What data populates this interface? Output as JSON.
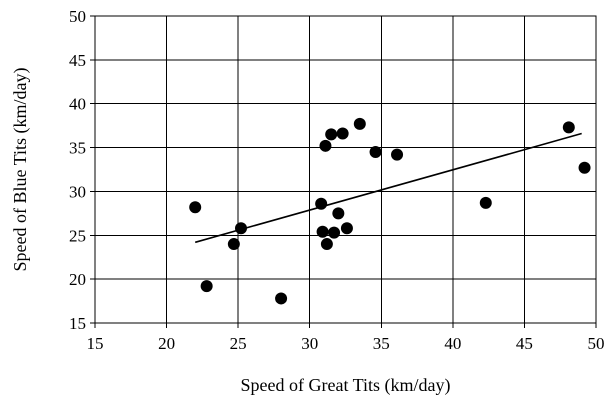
{
  "chart_data": {
    "type": "scatter",
    "title": "",
    "xlabel": "Speed of Great Tits (km/day)",
    "ylabel": "Speed of Blue Tits (km/day)",
    "xlim": [
      15,
      50
    ],
    "ylim": [
      15,
      50
    ],
    "x_ticks": [
      15,
      20,
      25,
      30,
      35,
      40,
      45,
      50
    ],
    "y_ticks": [
      15,
      20,
      25,
      30,
      35,
      40,
      45,
      50
    ],
    "grid": true,
    "legend": "none",
    "points": [
      {
        "x": 22.0,
        "y": 28.2
      },
      {
        "x": 22.8,
        "y": 19.2
      },
      {
        "x": 24.7,
        "y": 24.0
      },
      {
        "x": 25.2,
        "y": 25.8
      },
      {
        "x": 28.0,
        "y": 17.8
      },
      {
        "x": 30.8,
        "y": 28.6
      },
      {
        "x": 30.9,
        "y": 25.4
      },
      {
        "x": 31.1,
        "y": 35.2
      },
      {
        "x": 31.2,
        "y": 24.0
      },
      {
        "x": 31.5,
        "y": 36.5
      },
      {
        "x": 31.7,
        "y": 25.3
      },
      {
        "x": 32.0,
        "y": 27.5
      },
      {
        "x": 32.3,
        "y": 36.6
      },
      {
        "x": 32.6,
        "y": 25.8
      },
      {
        "x": 33.5,
        "y": 37.7
      },
      {
        "x": 34.6,
        "y": 34.5
      },
      {
        "x": 36.1,
        "y": 34.2
      },
      {
        "x": 42.3,
        "y": 28.7
      },
      {
        "x": 48.1,
        "y": 37.3
      },
      {
        "x": 49.2,
        "y": 32.7
      }
    ],
    "trendline": {
      "x1": 22.0,
      "y1": 24.2,
      "x2": 49.0,
      "y2": 36.6
    }
  }
}
